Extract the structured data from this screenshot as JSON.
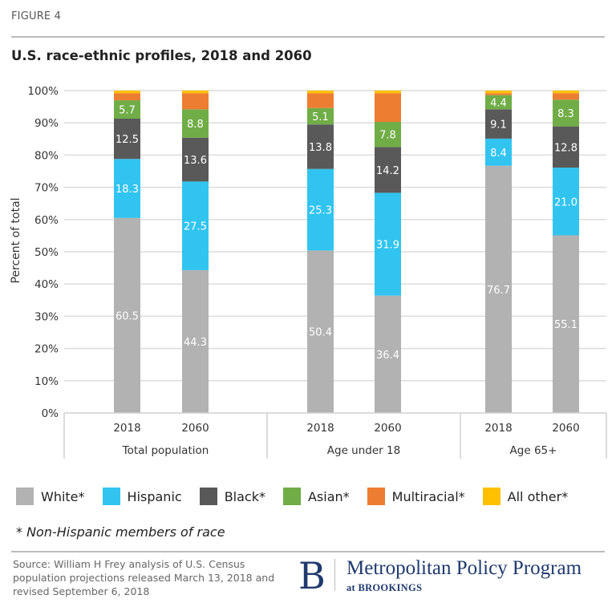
{
  "figure_label": "FIGURE 4",
  "title": "U.S. race-ethnic profiles, 2018 and 2060",
  "footnote": "* Non-Hispanic members of race",
  "source": "Source: William H Frey analysis of U.S. Census population projections released March 13, 2018 and revised September 6, 2018",
  "logo": {
    "mark": "B",
    "name": "Metropolitan Policy Program",
    "sub": "at BROOKINGS"
  },
  "colors": {
    "white": "#b2b2b2",
    "hispanic": "#31c4f0",
    "black": "#595959",
    "asian": "#70ad47",
    "multiracial": "#ed7d31",
    "all_other": "#ffc000",
    "brand": "#1f3a6e"
  },
  "legend": [
    {
      "key": "white",
      "label": "White*"
    },
    {
      "key": "hispanic",
      "label": "Hispanic"
    },
    {
      "key": "black",
      "label": "Black*"
    },
    {
      "key": "asian",
      "label": "Asian*"
    },
    {
      "key": "multiracial",
      "label": "Multiracial*"
    },
    {
      "key": "all_other",
      "label": "All other*"
    }
  ],
  "chart_data": {
    "type": "bar",
    "stacked": true,
    "title": "U.S. race-ethnic profiles, 2018 and 2060",
    "xlabel": "",
    "ylabel": "Percent of total",
    "ylim": [
      0,
      100
    ],
    "yticks": [
      "0%",
      "10%",
      "20%",
      "30%",
      "40%",
      "50%",
      "60%",
      "70%",
      "80%",
      "90%",
      "100%"
    ],
    "grid": true,
    "legend_position": "bottom",
    "groups": [
      {
        "label": "Total population",
        "categories": [
          "2018",
          "2060"
        ]
      },
      {
        "label": "Age under 18",
        "categories": [
          "2018",
          "2060"
        ]
      },
      {
        "label": "Age 65+",
        "categories": [
          "2018",
          "2060"
        ]
      }
    ],
    "categories": [
      "Total population 2018",
      "Total population 2060",
      "Age under 18 2018",
      "Age under 18 2060",
      "Age 65+ 2018",
      "Age 65+ 2060"
    ],
    "series": [
      {
        "name": "White*",
        "key": "white",
        "values": [
          60.5,
          44.3,
          50.4,
          36.4,
          76.7,
          55.1
        ],
        "labeled": true
      },
      {
        "name": "Hispanic",
        "key": "hispanic",
        "values": [
          18.3,
          27.5,
          25.3,
          31.9,
          8.4,
          21.0
        ],
        "labeled": true
      },
      {
        "name": "Black*",
        "key": "black",
        "values": [
          12.5,
          13.6,
          13.8,
          14.2,
          9.1,
          12.8
        ],
        "labeled": true
      },
      {
        "name": "Asian*",
        "key": "asian",
        "values": [
          5.7,
          8.8,
          5.1,
          7.8,
          4.4,
          8.3
        ],
        "labeled": true
      },
      {
        "name": "Multiracial*",
        "key": "multiracial",
        "values": [
          2.2,
          5.0,
          4.6,
          8.9,
          0.6,
          2.0
        ],
        "labeled": false
      },
      {
        "name": "All other*",
        "key": "all_other",
        "values": [
          0.8,
          0.8,
          0.8,
          0.8,
          0.8,
          0.8
        ],
        "labeled": false
      }
    ]
  }
}
